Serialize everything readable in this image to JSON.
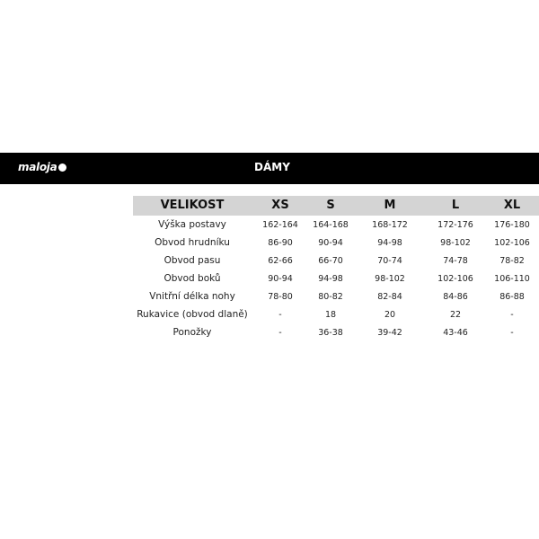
{
  "brand": {
    "logo_text": "maloja"
  },
  "header": {
    "title": "DÁMY"
  },
  "table": {
    "columns": [
      "VELIKOST",
      "XS",
      "S",
      "M",
      "L",
      "XL"
    ],
    "rows": [
      {
        "label": "Výška postavy",
        "values": [
          "162-164",
          "164-168",
          "168-172",
          "172-176",
          "176-180"
        ]
      },
      {
        "label": "Obvod hrudníku",
        "values": [
          "86-90",
          "90-94",
          "94-98",
          "98-102",
          "102-106"
        ]
      },
      {
        "label": "Obvod pasu",
        "values": [
          "62-66",
          "66-70",
          "70-74",
          "74-78",
          "78-82"
        ]
      },
      {
        "label": "Obvod boků",
        "values": [
          "90-94",
          "94-98",
          "98-102",
          "102-106",
          "106-110"
        ]
      },
      {
        "label": "Vnitřní délka nohy",
        "values": [
          "78-80",
          "80-82",
          "82-84",
          "84-86",
          "86-88"
        ]
      },
      {
        "label": "Rukavice (obvod dlaně)",
        "values": [
          "-",
          "18",
          "20",
          "22",
          "-"
        ]
      },
      {
        "label": "Ponožky",
        "values": [
          "-",
          "36-38",
          "39-42",
          "43-46",
          "-"
        ]
      }
    ]
  }
}
